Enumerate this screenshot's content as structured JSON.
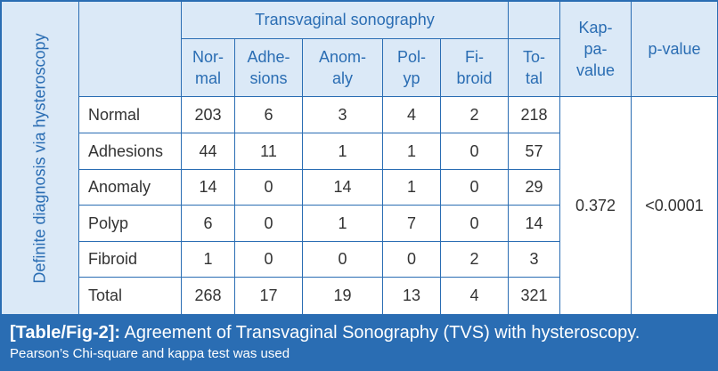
{
  "table": {
    "side_label": "Definite diagnosis via hysteroscopy",
    "group_header": "Transvaginal sonography",
    "column_headers": [
      [
        "Nor-",
        "mal"
      ],
      [
        "Adhe-",
        "sions"
      ],
      [
        "Anom-",
        "aly"
      ],
      [
        "Pol-",
        "yp"
      ],
      [
        "Fi-",
        "broid"
      ],
      [
        "To-",
        "tal"
      ]
    ],
    "kappa_header": [
      "Kap-",
      "pa-",
      "value"
    ],
    "pvalue_header": "p-value",
    "rows": [
      {
        "label": "Normal",
        "values": [
          "203",
          "6",
          "3",
          "4",
          "2",
          "218"
        ]
      },
      {
        "label": "Adhesions",
        "values": [
          "44",
          "11",
          "1",
          "1",
          "0",
          "57"
        ]
      },
      {
        "label": "Anomaly",
        "values": [
          "14",
          "0",
          "14",
          "1",
          "0",
          "29"
        ]
      },
      {
        "label": "Polyp",
        "values": [
          "6",
          "0",
          "1",
          "7",
          "0",
          "14"
        ]
      },
      {
        "label": "Fibroid",
        "values": [
          "1",
          "0",
          "0",
          "0",
          "2",
          "3"
        ]
      },
      {
        "label": "Total",
        "values": [
          "268",
          "17",
          "19",
          "13",
          "4",
          "321"
        ]
      }
    ],
    "kappa_value": "0.372",
    "p_value": "<0.0001"
  },
  "caption": {
    "tag": "[Table/Fig-2]:",
    "title": "Agreement of Transvaginal Sonography (TVS) with hysteroscopy.",
    "note": "Pearson’s Chi-square and kappa test was used"
  },
  "colors": {
    "accent": "#2a6db3",
    "shaded": "#dbe9f7",
    "text": "#333333"
  }
}
